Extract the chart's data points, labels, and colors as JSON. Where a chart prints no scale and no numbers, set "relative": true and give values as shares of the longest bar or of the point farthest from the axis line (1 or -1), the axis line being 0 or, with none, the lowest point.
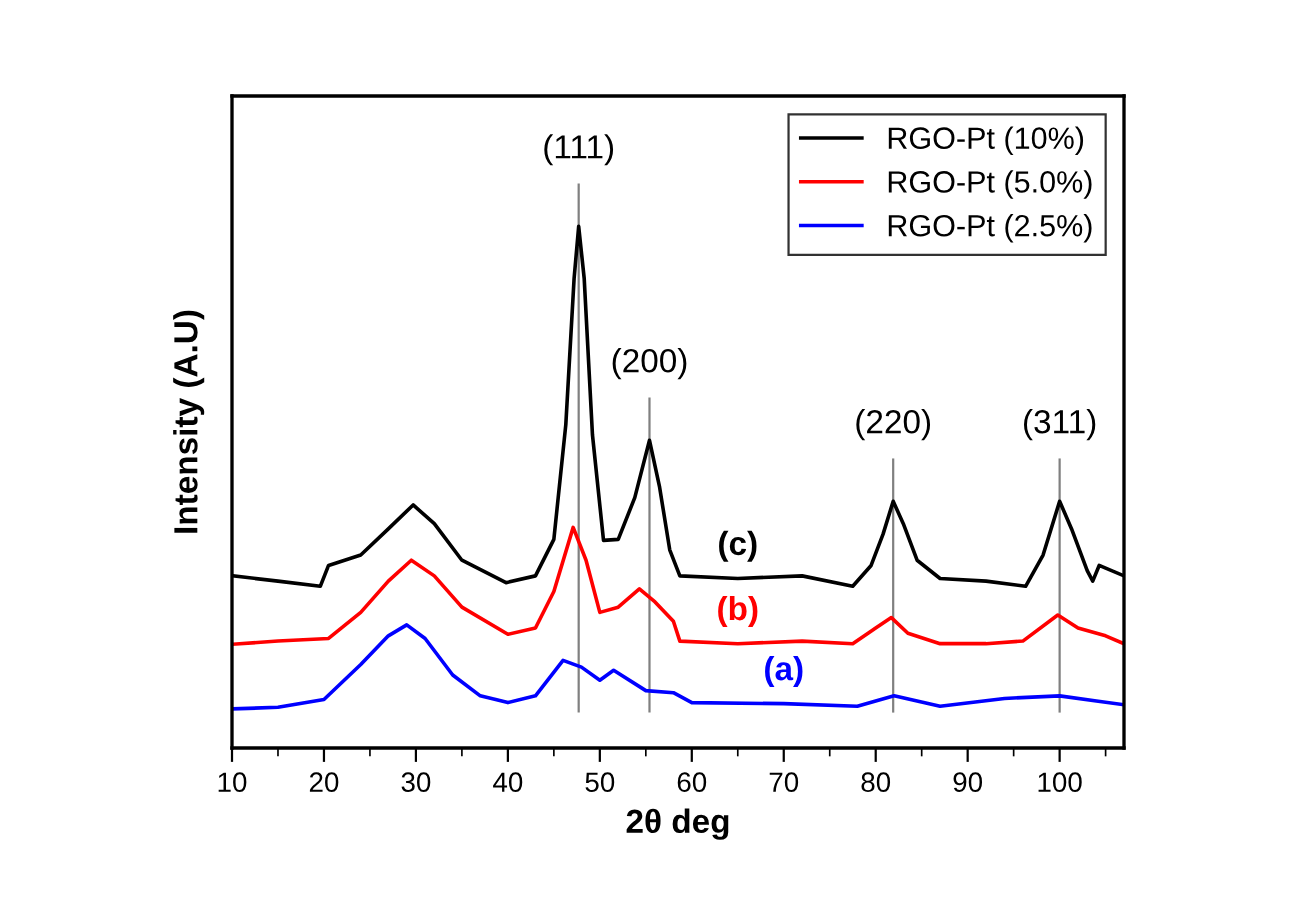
{
  "chart_data": {
    "type": "line",
    "relative": true,
    "xlabel": "2θ deg",
    "ylabel": "Intensity (A.U)",
    "xlim": [
      10,
      107
    ],
    "xticks": [
      10,
      20,
      30,
      40,
      50,
      60,
      70,
      80,
      90,
      100
    ],
    "legend": "top right",
    "grid": false,
    "line_style": "solid",
    "marker": "none",
    "series": [
      {
        "name": "RGO-Pt (10%)",
        "color": "#000000",
        "x": [
          10.1,
          15,
          19.6,
          20.5,
          24,
          27,
          29.7,
          32,
          35,
          39.8,
          43,
          45,
          46.3,
          47.2,
          47.7,
          48.3,
          49.2,
          50.4,
          52,
          53.8,
          55.4,
          56.5,
          57.6,
          58.7,
          65,
          72,
          77.5,
          79.5,
          80.8,
          81.9,
          83,
          84.5,
          87,
          92,
          96.3,
          98.2,
          100,
          101.3,
          103,
          103.6,
          104.3,
          107
        ],
        "values": [
          0.33,
          0.32,
          0.31,
          0.35,
          0.37,
          0.42,
          0.466,
          0.43,
          0.36,
          0.317,
          0.33,
          0.4,
          0.62,
          0.9,
          1.0,
          0.9,
          0.6,
          0.398,
          0.4,
          0.48,
          0.59,
          0.5,
          0.38,
          0.33,
          0.325,
          0.33,
          0.31,
          0.35,
          0.41,
          0.473,
          0.43,
          0.36,
          0.325,
          0.32,
          0.31,
          0.37,
          0.473,
          0.42,
          0.34,
          0.32,
          0.35,
          0.33
        ]
      },
      {
        "name": "RGO-Pt (5.0%)",
        "color": "#ff0000",
        "x": [
          10.1,
          15,
          20.5,
          24,
          27,
          29.5,
          32,
          35,
          40,
          43,
          45,
          47.1,
          48.5,
          50,
          52,
          54.3,
          56,
          58,
          58.7,
          65,
          72,
          77.5,
          80,
          81.7,
          83.5,
          87,
          92,
          96,
          99.8,
          102,
          105,
          107
        ],
        "values": [
          0.199,
          0.205,
          0.21,
          0.26,
          0.32,
          0.36,
          0.33,
          0.27,
          0.218,
          0.23,
          0.3,
          0.423,
          0.36,
          0.26,
          0.27,
          0.305,
          0.28,
          0.243,
          0.205,
          0.2,
          0.205,
          0.2,
          0.23,
          0.25,
          0.22,
          0.2,
          0.2,
          0.205,
          0.255,
          0.23,
          0.215,
          0.2
        ]
      },
      {
        "name": "RGO-Pt (2.5%)",
        "color": "#0000ff",
        "x": [
          10.1,
          15,
          20,
          24,
          27,
          29,
          31,
          34,
          37,
          40,
          43,
          46,
          48,
          50,
          51.5,
          55,
          58,
          60,
          70,
          78,
          82,
          87,
          94,
          100,
          104,
          107
        ],
        "values": [
          0.075,
          0.078,
          0.093,
          0.16,
          0.215,
          0.236,
          0.21,
          0.14,
          0.1,
          0.087,
          0.1,
          0.168,
          0.155,
          0.13,
          0.149,
          0.11,
          0.106,
          0.087,
          0.085,
          0.08,
          0.1,
          0.08,
          0.095,
          0.1,
          0.09,
          0.083
        ]
      }
    ],
    "ref_lines": [
      {
        "axis": "x",
        "value": 47.7,
        "color": "#808080"
      },
      {
        "axis": "x",
        "value": 55.4,
        "color": "#808080"
      },
      {
        "axis": "x",
        "value": 81.9,
        "color": "#808080"
      },
      {
        "axis": "x",
        "value": 100,
        "color": "#808080"
      }
    ],
    "annotations": [
      {
        "text": "(111)",
        "x": 47.7,
        "y": 1.0
      },
      {
        "text": "(200)",
        "x": 55.4,
        "y": 0.59
      },
      {
        "text": "(220)",
        "x": 81.9,
        "y": 0.473
      },
      {
        "text": "(311)",
        "x": 100,
        "y": 0.473
      },
      "(c)",
      "(b)",
      "(a)"
    ]
  }
}
